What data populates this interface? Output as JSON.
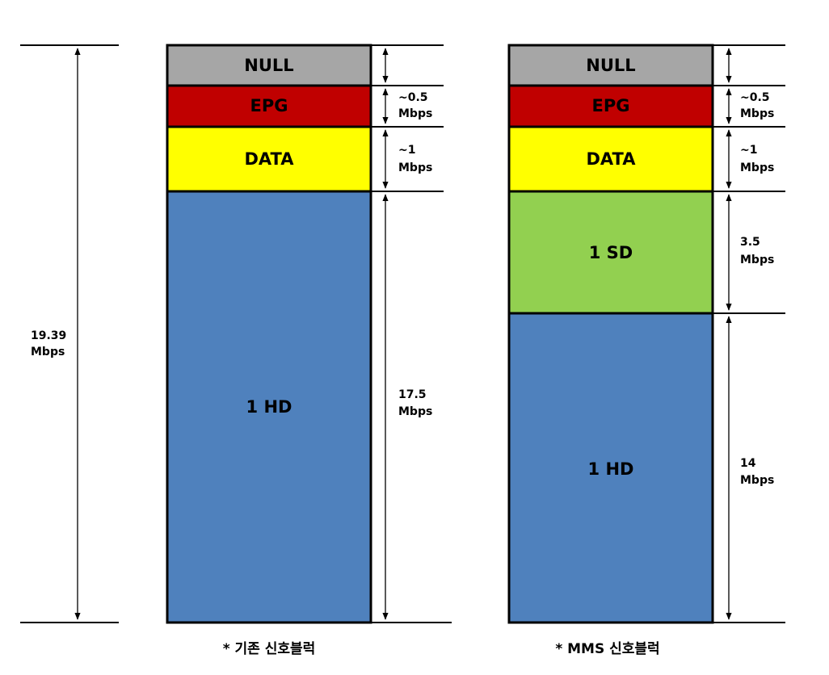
{
  "total": {
    "lines": [
      "19.39",
      "Mbps"
    ]
  },
  "columns": [
    {
      "caption": "* 기존 신호블럭",
      "blocks": [
        {
          "label": "NULL"
        },
        {
          "label": "EPG",
          "bandwidth": [
            "~0.5",
            "Mbps"
          ]
        },
        {
          "label": "DATA",
          "bandwidth": [
            "~1",
            "Mbps"
          ]
        },
        {
          "label": "1 HD",
          "bandwidth": [
            "17.5",
            "Mbps"
          ]
        }
      ]
    },
    {
      "caption": "* MMS 신호블럭",
      "blocks": [
        {
          "label": "NULL"
        },
        {
          "label": "EPG",
          "bandwidth": [
            "~0.5",
            "Mbps"
          ]
        },
        {
          "label": "DATA",
          "bandwidth": [
            "~1",
            "Mbps"
          ]
        },
        {
          "label": "1 SD",
          "bandwidth": [
            "3.5",
            "Mbps"
          ]
        },
        {
          "label": "1 HD",
          "bandwidth": [
            "14",
            "Mbps"
          ]
        }
      ]
    }
  ]
}
